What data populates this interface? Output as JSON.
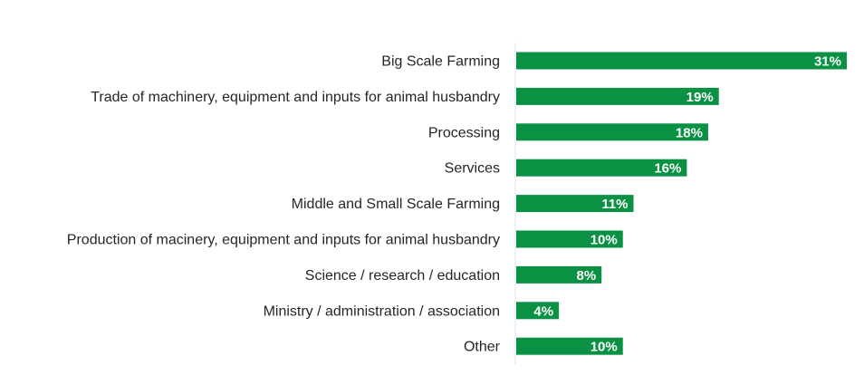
{
  "chart_data": {
    "type": "bar",
    "orientation": "horizontal",
    "title": "",
    "xlabel": "",
    "ylabel": "",
    "categories": [
      "Big Scale Farming",
      "Trade of machinery, equipment and inputs for animal husbandry",
      "Processing",
      "Services",
      "Middle and Small Scale Farming",
      "Production of macinery, equipment and inputs for animal husbandry",
      "Science / research / education",
      "Ministry / administration / association",
      "Other"
    ],
    "values": [
      31,
      19,
      18,
      16,
      11,
      10,
      8,
      4,
      10
    ],
    "value_labels": [
      "31%",
      "19%",
      "18%",
      "16%",
      "11%",
      "10%",
      "8%",
      "4%",
      "10%"
    ],
    "xlim": [
      0,
      31
    ],
    "grid": false,
    "legend": "none",
    "colors": {
      "bar": "#0a9144",
      "axis": "#dbe6f0",
      "text": "#262626"
    }
  }
}
